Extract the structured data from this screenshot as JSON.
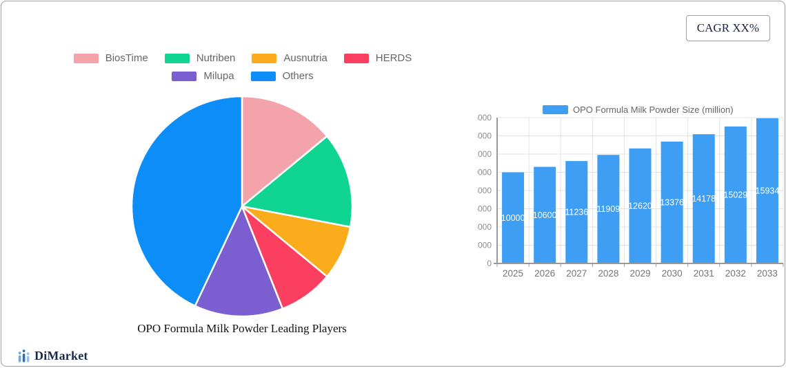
{
  "cagr_badge": {
    "label": "CAGR XX%"
  },
  "logo": {
    "text": "DiMarket"
  },
  "chart_data": [
    {
      "type": "pie",
      "title": "OPO Formula Milk Powder Leading Players",
      "legend_position": "top",
      "labels": [
        "BiosTime",
        "Nutriben",
        "Ausnutria",
        "HERDS",
        "Milupa",
        "Others"
      ],
      "values": [
        14,
        14,
        8,
        8,
        13,
        43
      ],
      "unit": "percent-estimated",
      "colors": [
        "#f4a3aa",
        "#10d592",
        "#fbac1b",
        "#fa3f60",
        "#7b5fd0",
        "#0d8df8"
      ],
      "start_angle": "top",
      "direction": "clockwise"
    },
    {
      "type": "bar",
      "categories": [
        "2025",
        "2026",
        "2027",
        "2028",
        "2029",
        "2030",
        "2031",
        "2032",
        "2033"
      ],
      "series": [
        {
          "name": "OPO Formula Milk Powder Size (million)",
          "values": [
            10000,
            10600,
            11236,
            11909,
            12620,
            13376,
            14178,
            15029,
            15934
          ]
        }
      ],
      "bar_color": "#3d9ef4",
      "ylim": [
        0,
        16000
      ],
      "ytick_step": 2000,
      "grid": true,
      "value_labels": "inside-center",
      "legend_position": "top"
    }
  ]
}
